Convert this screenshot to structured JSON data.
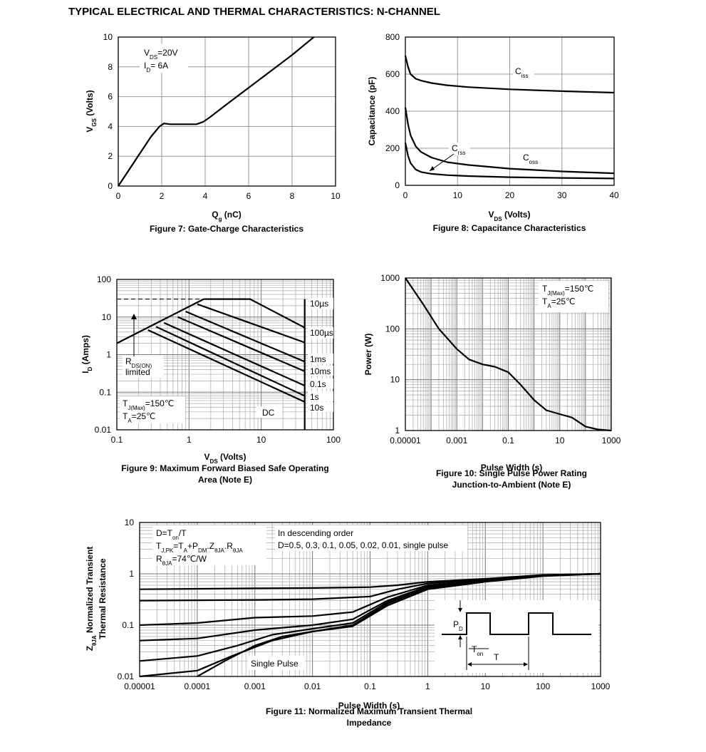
{
  "page_title": "TYPICAL ELECTRICAL AND THERMAL CHARACTERISTICS: N-CHANNEL",
  "chart_data": [
    {
      "id": "fig7",
      "type": "line",
      "caption": "Figure 7: Gate-Charge Characteristics",
      "xlabel": "Qg (nC)",
      "ylabel": "VGS (Volts)",
      "xlim": [
        0,
        10
      ],
      "ylim": [
        0,
        10
      ],
      "xticks": [
        "0",
        "2",
        "4",
        "6",
        "8",
        "10"
      ],
      "yticks": [
        "0",
        "2",
        "4",
        "6",
        "8",
        "10"
      ],
      "grid": true,
      "annotations": [
        "VDS=20V",
        "ID= 6A"
      ],
      "series": [
        {
          "x": [
            0,
            0.5,
            1.0,
            1.5,
            1.9,
            2.1,
            2.4,
            2.8,
            3.2,
            3.6,
            3.9,
            4.2,
            5,
            6,
            7,
            8,
            9
          ],
          "y": [
            0,
            1.1,
            2.2,
            3.3,
            4.0,
            4.2,
            4.15,
            4.15,
            4.15,
            4.15,
            4.3,
            4.6,
            5.5,
            6.6,
            7.7,
            8.8,
            10
          ]
        }
      ]
    },
    {
      "id": "fig8",
      "type": "line",
      "caption": "Figure 8: Capacitance Characteristics",
      "xlabel": "VDS (Volts)",
      "ylabel": "Capacitance (pF)",
      "xlim": [
        0,
        40
      ],
      "ylim": [
        0,
        800
      ],
      "xticks": [
        "0",
        "10",
        "20",
        "30",
        "40"
      ],
      "yticks": [
        "0",
        "200",
        "400",
        "600",
        "800"
      ],
      "grid": true,
      "series": [
        {
          "name": "Ciss",
          "x": [
            0,
            0.5,
            1,
            2,
            3,
            5,
            8,
            12,
            20,
            30,
            40
          ],
          "y": [
            700,
            640,
            600,
            575,
            565,
            552,
            540,
            530,
            518,
            508,
            500
          ]
        },
        {
          "name": "Coss",
          "x": [
            0,
            0.5,
            1,
            2,
            3,
            5,
            8,
            12,
            20,
            30,
            40
          ],
          "y": [
            420,
            330,
            270,
            210,
            180,
            150,
            125,
            110,
            90,
            75,
            65
          ]
        },
        {
          "name": "Crss",
          "x": [
            0,
            0.5,
            1,
            2,
            3,
            5,
            8,
            12,
            20,
            30,
            40
          ],
          "y": [
            230,
            160,
            120,
            85,
            72,
            62,
            55,
            50,
            44,
            40,
            37
          ]
        }
      ]
    },
    {
      "id": "fig9",
      "type": "line",
      "caption": "Figure 9: Maximum Forward Biased Safe Operating Area (Note E)",
      "xlabel": "VDS (Volts)",
      "ylabel": "ID (Amps)",
      "xscale": "log",
      "yscale": "log",
      "xlim": [
        0.1,
        100
      ],
      "ylim": [
        0.01,
        100
      ],
      "xticks": [
        "0.1",
        "1",
        "10",
        "100"
      ],
      "yticks": [
        "0.01",
        "0.1",
        "1",
        "10",
        "100"
      ],
      "grid": true,
      "annotations": [
        "RDS(ON) limited",
        "TJ(Max)=150°C",
        "TA=25°C",
        "DC"
      ],
      "series": [
        {
          "name": "RDS(ON) limit",
          "x": [
            0.1,
            1.6
          ],
          "y": [
            2,
            30
          ]
        },
        {
          "name": "10µs",
          "x": [
            1.6,
            7,
            40
          ],
          "y": [
            30,
            30,
            5.2
          ]
        },
        {
          "name": "100µs",
          "x": [
            1.3,
            40
          ],
          "y": [
            22,
            2.1
          ]
        },
        {
          "name": "1ms",
          "x": [
            0.9,
            40
          ],
          "y": [
            14,
            0.65
          ]
        },
        {
          "name": "10ms",
          "x": [
            0.7,
            40
          ],
          "y": [
            10,
            0.36
          ]
        },
        {
          "name": "0.1s",
          "x": [
            0.45,
            40
          ],
          "y": [
            7,
            0.15
          ]
        },
        {
          "name": "1s",
          "x": [
            0.35,
            40
          ],
          "y": [
            5.5,
            0.08
          ]
        },
        {
          "name": "10s",
          "x": [
            0.27,
            40
          ],
          "y": [
            4.5,
            0.055
          ]
        },
        {
          "name": "DC",
          "x": [
            40,
            40
          ],
          "y": [
            0.01,
            30
          ]
        },
        {
          "name": "current limit",
          "x": [
            0.1,
            1.6
          ],
          "y": [
            30,
            30
          ]
        }
      ]
    },
    {
      "id": "fig10",
      "type": "line",
      "caption": "Figure 10: Single Pulse Power Rating Junction-to-Ambient (Note E)",
      "xlabel": "Pulse Width (s)",
      "ylabel": "Power (W)",
      "xscale": "log",
      "yscale": "log",
      "xlim": [
        1e-05,
        1000
      ],
      "ylim": [
        1,
        1000
      ],
      "xticks": [
        "0.00001",
        "0.001",
        "0.1",
        "10",
        "1000"
      ],
      "yticks": [
        "1",
        "10",
        "100",
        "1000"
      ],
      "grid": true,
      "annotations": [
        "TJ(Max)=150°C",
        "TA=25°C"
      ],
      "series": [
        {
          "x": [
            1e-05,
            5e-05,
            0.0002,
            0.001,
            0.003,
            0.01,
            0.03,
            0.1,
            0.3,
            1,
            3,
            10,
            30,
            100,
            300,
            1000
          ],
          "y": [
            1000,
            300,
            100,
            40,
            25,
            20,
            18,
            14,
            8,
            4,
            2.5,
            2.1,
            1.8,
            1.2,
            1.05,
            1.0
          ]
        }
      ]
    },
    {
      "id": "fig11",
      "type": "line",
      "caption": "Figure 11: Normalized Maximum Transient Thermal Impedance",
      "xlabel": "Pulse Width (s)",
      "ylabel": "ZθJA Normalized Transient Thermal Resistance",
      "xscale": "log",
      "yscale": "log",
      "xlim": [
        1e-05,
        1000
      ],
      "ylim": [
        0.01,
        10
      ],
      "xticks": [
        "0.00001",
        "0.0001",
        "0.001",
        "0.01",
        "0.1",
        "1",
        "10",
        "100",
        "1000"
      ],
      "yticks": [
        "0.01",
        "0.1",
        "1",
        "10"
      ],
      "grid": true,
      "annotations": [
        "D=Ton/T",
        "TJ,PK=TA+PDM.ZθJA.RθJA",
        "RθJA=74°C/W",
        "In descending order",
        "D=0.5, 0.3, 0.1, 0.05, 0.02, 0.01, single pulse",
        "Single Pulse",
        "PD",
        "Ton",
        "T"
      ],
      "series": [
        {
          "name": "D=0.5",
          "x": [
            1e-05,
            0.001,
            0.01,
            0.1,
            0.3,
            1,
            10,
            100,
            1000
          ],
          "y": [
            0.5,
            0.52,
            0.53,
            0.55,
            0.6,
            0.7,
            0.8,
            0.95,
            1.0
          ]
        },
        {
          "name": "D=0.3",
          "x": [
            1e-05,
            0.001,
            0.01,
            0.1,
            0.3,
            1,
            10,
            100,
            1000
          ],
          "y": [
            0.3,
            0.31,
            0.32,
            0.36,
            0.5,
            0.65,
            0.78,
            0.94,
            1.0
          ]
        },
        {
          "name": "D=0.1",
          "x": [
            1e-05,
            0.0001,
            0.001,
            0.01,
            0.05,
            0.2,
            1,
            10,
            100,
            1000
          ],
          "y": [
            0.1,
            0.11,
            0.14,
            0.15,
            0.18,
            0.35,
            0.6,
            0.75,
            0.93,
            1.0
          ]
        },
        {
          "name": "D=0.05",
          "x": [
            1e-05,
            0.0001,
            0.001,
            0.01,
            0.05,
            0.2,
            1,
            10,
            100,
            1000
          ],
          "y": [
            0.05,
            0.055,
            0.08,
            0.1,
            0.13,
            0.3,
            0.57,
            0.74,
            0.93,
            1.0
          ]
        },
        {
          "name": "D=0.02",
          "x": [
            1e-05,
            0.0001,
            0.0005,
            0.002,
            0.01,
            0.05,
            0.2,
            1,
            10,
            100,
            1000
          ],
          "y": [
            0.02,
            0.025,
            0.04,
            0.065,
            0.085,
            0.11,
            0.28,
            0.55,
            0.73,
            0.92,
            1.0
          ]
        },
        {
          "name": "D=0.01",
          "x": [
            1e-05,
            0.0001,
            0.0004,
            0.002,
            0.01,
            0.05,
            0.2,
            1,
            10,
            100,
            1000
          ],
          "y": [
            0.01,
            0.013,
            0.025,
            0.05,
            0.075,
            0.1,
            0.26,
            0.53,
            0.72,
            0.92,
            1.0
          ]
        },
        {
          "name": "single pulse",
          "x": [
            0.0001,
            0.0003,
            0.001,
            0.003,
            0.01,
            0.05,
            0.2,
            1,
            10,
            100,
            1000
          ],
          "y": [
            0.01,
            0.02,
            0.04,
            0.06,
            0.075,
            0.095,
            0.24,
            0.5,
            0.7,
            0.9,
            1.0
          ]
        }
      ]
    }
  ]
}
